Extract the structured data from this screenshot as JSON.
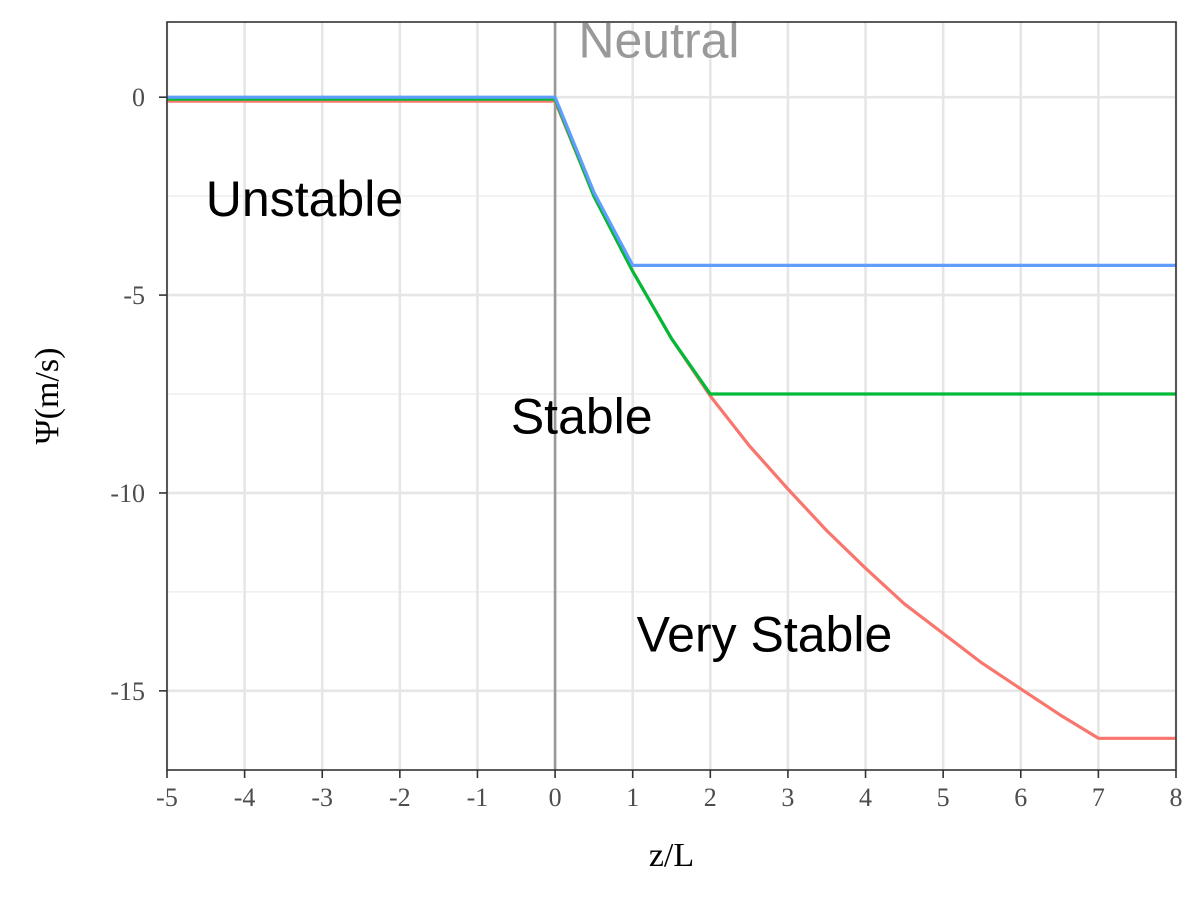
{
  "chart_data": {
    "type": "line",
    "xlabel": "z/L",
    "ylabel": "Ψ(m/s)",
    "xlim": [
      -5,
      8
    ],
    "ylim": [
      -17,
      1.9
    ],
    "x_ticks": [
      -5,
      -4,
      -3,
      -2,
      -1,
      0,
      1,
      2,
      3,
      4,
      5,
      6,
      7,
      8
    ],
    "y_ticks": [
      0,
      -5,
      -10,
      -15
    ],
    "grid": true,
    "reference_line": {
      "x": 0,
      "color": "#999999"
    },
    "annotations": [
      {
        "text": "Neutral",
        "x": 0.3,
        "y": 1.0,
        "color": "#999999"
      },
      {
        "text": "Unstable",
        "x": -4.5,
        "y": -3.0,
        "color": "#000000"
      },
      {
        "text": "Stable",
        "x": -0.57,
        "y": -8.5,
        "color": "#000000"
      },
      {
        "text": "Very Stable",
        "x": 1.05,
        "y": -14.0,
        "color": "#000000"
      }
    ],
    "series": [
      {
        "color": "#F8766D",
        "points": [
          [
            -5,
            -0.1
          ],
          [
            0,
            -0.1
          ],
          [
            0.5,
            -2.5
          ],
          [
            1,
            -4.4
          ],
          [
            1.5,
            -6.1
          ],
          [
            2,
            -7.55
          ],
          [
            2.5,
            -8.8
          ],
          [
            3,
            -9.9
          ],
          [
            3.5,
            -10.95
          ],
          [
            4,
            -11.9
          ],
          [
            4.5,
            -12.8
          ],
          [
            5,
            -13.55
          ],
          [
            5.5,
            -14.3
          ],
          [
            6,
            -14.95
          ],
          [
            6.5,
            -15.6
          ],
          [
            7,
            -16.2
          ],
          [
            8,
            -16.2
          ]
        ]
      },
      {
        "color": "#00BA38",
        "points": [
          [
            -5,
            -0.05
          ],
          [
            0,
            -0.05
          ],
          [
            0.5,
            -2.5
          ],
          [
            1,
            -4.4
          ],
          [
            1.5,
            -6.1
          ],
          [
            2,
            -7.5
          ],
          [
            8,
            -7.5
          ]
        ]
      },
      {
        "color": "#619CFF",
        "points": [
          [
            -5,
            0
          ],
          [
            0,
            0
          ],
          [
            0.5,
            -2.4
          ],
          [
            1,
            -4.25
          ],
          [
            8,
            -4.25
          ]
        ]
      }
    ]
  }
}
